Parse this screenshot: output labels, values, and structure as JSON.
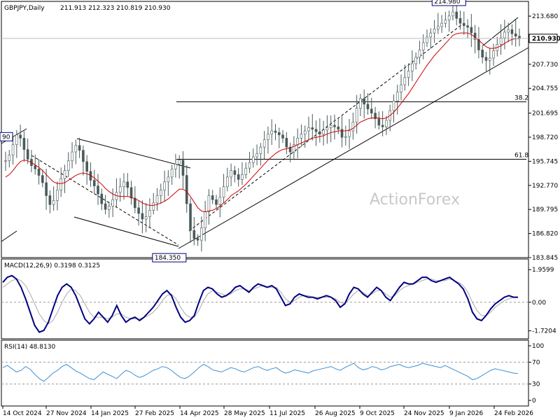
{
  "chart_data": [
    {
      "type": "candlestick",
      "symbol_label": "GBPJPY,Daily",
      "ohlc_label": "211.913 212.323 210.819 210.930",
      "watermark": "ActionForex",
      "current_price": "210.930",
      "ylim": [
        183.845,
        215.5
      ],
      "yticks": [
        "213.680",
        "210.930",
        "207.730",
        "204.755",
        "201.695",
        "198.720",
        "195.745",
        "192.770",
        "189.795",
        "186.820",
        "183.845"
      ],
      "ytick_values": [
        213.68,
        210.93,
        207.73,
        204.755,
        201.695,
        198.72,
        195.745,
        192.77,
        189.795,
        186.82,
        183.845
      ],
      "fib_levels": [
        {
          "label": "38.2",
          "value": 203.1
        },
        {
          "label": "61.8",
          "value": 196.0
        }
      ],
      "price_annotations": [
        {
          "label": "214.980",
          "value": 214.98,
          "date_index": 0.852
        },
        {
          "label": "184.350",
          "value": 184.35,
          "date_index": 0.318
        },
        {
          "label": "90",
          "value": 199.3,
          "date_index": 0.0
        }
      ],
      "close_series": [
        195.8,
        196.5,
        197.8,
        199.0,
        198.6,
        197.2,
        196.0,
        195.2,
        194.8,
        194.0,
        193.1,
        191.5,
        190.4,
        190.9,
        192.2,
        193.6,
        194.6,
        195.8,
        196.9,
        197.7,
        197.1,
        195.7,
        194.5,
        193.4,
        192.7,
        191.7,
        190.5,
        189.8,
        190.2,
        191.0,
        191.9,
        192.6,
        193.2,
        192.5,
        191.2,
        190.0,
        189.3,
        188.6,
        188.9,
        189.7,
        190.6,
        191.5,
        192.2,
        193.2,
        193.8,
        194.8,
        195.4,
        195.9,
        194.0,
        190.5,
        187.2,
        186.2,
        186.0,
        187.5,
        189.5,
        191.5,
        191.0,
        190.4,
        191.3,
        192.6,
        193.8,
        194.6,
        194.1,
        193.5,
        194.1,
        194.9,
        195.6,
        196.3,
        196.7,
        197.5,
        198.4,
        199.1,
        199.5,
        199.3,
        199.0,
        198.6,
        197.5,
        196.9,
        197.8,
        198.6,
        199.1,
        199.5,
        199.9,
        199.7,
        199.4,
        199.1,
        199.6,
        199.9,
        200.2,
        200.0,
        199.7,
        198.7,
        198.8,
        199.5,
        200.6,
        202.3,
        203.5,
        202.8,
        202.2,
        201.7,
        201.0,
        200.2,
        200.0,
        200.8,
        202.0,
        203.2,
        204.3,
        205.2,
        206.1,
        206.9,
        207.8,
        208.6,
        209.5,
        210.4,
        211.1,
        211.6,
        212.1,
        212.4,
        212.8,
        213.2,
        213.7,
        214.2,
        213.4,
        212.8,
        212.5,
        212.3,
        211.6,
        210.8,
        209.5,
        208.6,
        208.2,
        208.5,
        209.4,
        210.2,
        211.0,
        211.7,
        212.0,
        211.5,
        211.2,
        210.9
      ],
      "sma_series": [
        193.8,
        194.1,
        194.6,
        195.2,
        195.7,
        195.9,
        195.8,
        195.6,
        195.3,
        195.0,
        194.6,
        194.1,
        193.6,
        193.2,
        193.0,
        193.0,
        193.1,
        193.4,
        193.7,
        194.0,
        194.2,
        194.3,
        194.2,
        194.0,
        193.7,
        193.3,
        192.9,
        192.4,
        192.0,
        191.7,
        191.5,
        191.4,
        191.4,
        191.4,
        191.3,
        191.1,
        190.9,
        190.6,
        190.4,
        190.3,
        190.3,
        190.4,
        190.6,
        190.8,
        191.1,
        191.5,
        191.9,
        192.3,
        192.3,
        192.0,
        191.4,
        190.7,
        190.0,
        189.6,
        189.5,
        189.6,
        189.7,
        189.9,
        190.2,
        190.6,
        191.0,
        191.5,
        191.8,
        192.1,
        192.5,
        192.9,
        193.4,
        193.9,
        194.4,
        194.9,
        195.4,
        195.9,
        196.3,
        196.7,
        197.0,
        197.2,
        197.3,
        197.4,
        197.6,
        197.8,
        198.0,
        198.2,
        198.4,
        198.6,
        198.7,
        198.8,
        198.9,
        199.1,
        199.3,
        199.4,
        199.5,
        199.5,
        199.5,
        199.6,
        199.8,
        200.2,
        200.6,
        200.8,
        201.0,
        201.1,
        201.1,
        201.1,
        201.0,
        201.1,
        201.4,
        201.8,
        202.3,
        202.9,
        203.5,
        204.1,
        204.8,
        205.5,
        206.2,
        206.9,
        207.6,
        208.2,
        208.8,
        209.3,
        209.8,
        210.3,
        210.8,
        211.3,
        211.5,
        211.6,
        211.6,
        211.6,
        211.4,
        211.1,
        210.7,
        210.3,
        209.9,
        209.7,
        209.7,
        209.8,
        210.0,
        210.3,
        210.6,
        210.8,
        210.9,
        210.9
      ],
      "x_labels": [
        "14 Oct 2024",
        "27 Nov 2024",
        "14 Jan 2025",
        "27 Feb 2025",
        "14 Apr 2025",
        "28 May 2025",
        "11 Jul 2025",
        "26 Aug 2025",
        "9 Oct 2025",
        "24 Nov 2025",
        "9 Jan 2026",
        "24 Feb 2026"
      ]
    },
    {
      "type": "line",
      "label": "MACD(12,26,9) 0.3198 0.3125",
      "yticks": [
        "1.9599",
        "0.00",
        "-1.7204"
      ],
      "ytick_values": [
        1.9599,
        0.0,
        -1.7204
      ],
      "ylim": [
        -2.2,
        2.6
      ],
      "series": [
        {
          "name": "MACD",
          "values": [
            1.2,
            1.5,
            1.6,
            1.4,
            0.9,
            0.2,
            -0.6,
            -1.4,
            -1.8,
            -1.7,
            -1.2,
            -0.4,
            0.4,
            0.9,
            1.1,
            0.9,
            0.4,
            -0.3,
            -1.0,
            -1.3,
            -1.0,
            -0.6,
            -0.9,
            -1.2,
            -0.8,
            -0.2,
            -0.8,
            -1.2,
            -1.0,
            -0.9,
            -1.1,
            -0.9,
            -0.6,
            -0.3,
            0.1,
            0.5,
            0.7,
            0.4,
            -0.3,
            -0.9,
            -1.2,
            -1.1,
            -0.8,
            0.0,
            0.7,
            0.9,
            0.8,
            0.5,
            0.3,
            0.4,
            0.6,
            0.9,
            1.0,
            0.8,
            0.6,
            0.9,
            1.1,
            1.0,
            0.9,
            1.0,
            0.8,
            0.3,
            -0.2,
            -0.1,
            0.3,
            0.5,
            0.4,
            0.3,
            0.3,
            0.2,
            0.3,
            0.4,
            0.3,
            0.1,
            -0.3,
            -0.1,
            0.5,
            0.9,
            0.8,
            0.5,
            0.3,
            0.6,
            0.9,
            0.7,
            0.3,
            0.1,
            0.5,
            0.9,
            1.2,
            1.1,
            1.1,
            1.3,
            1.5,
            1.5,
            1.3,
            1.2,
            1.3,
            1.4,
            1.5,
            1.3,
            1.1,
            0.8,
            0.2,
            -0.6,
            -1.0,
            -1.1,
            -0.8,
            -0.4,
            -0.1,
            0.1,
            0.3,
            0.4,
            0.3,
            0.3
          ]
        },
        {
          "name": "Signal",
          "values": [
            0.9,
            1.1,
            1.3,
            1.4,
            1.3,
            1.0,
            0.5,
            -0.1,
            -0.7,
            -1.1,
            -1.3,
            -1.1,
            -0.6,
            0.0,
            0.5,
            0.8,
            0.7,
            0.4,
            -0.1,
            -0.6,
            -0.9,
            -0.9,
            -0.9,
            -1.0,
            -0.9,
            -0.7,
            -0.7,
            -0.9,
            -1.0,
            -1.0,
            -1.0,
            -0.9,
            -0.8,
            -0.6,
            -0.3,
            0.1,
            0.4,
            0.5,
            0.2,
            -0.3,
            -0.7,
            -0.9,
            -0.9,
            -0.5,
            0.1,
            0.5,
            0.7,
            0.6,
            0.5,
            0.4,
            0.5,
            0.7,
            0.8,
            0.8,
            0.7,
            0.8,
            0.9,
            1.0,
            0.9,
            0.9,
            0.9,
            0.6,
            0.2,
            0.0,
            0.1,
            0.3,
            0.4,
            0.4,
            0.3,
            0.3,
            0.3,
            0.3,
            0.3,
            0.2,
            0.0,
            -0.1,
            0.2,
            0.5,
            0.7,
            0.6,
            0.4,
            0.5,
            0.7,
            0.7,
            0.5,
            0.3,
            0.4,
            0.7,
            0.9,
            1.0,
            1.1,
            1.2,
            1.3,
            1.4,
            1.4,
            1.3,
            1.3,
            1.3,
            1.4,
            1.3,
            1.2,
            1.0,
            0.6,
            0.0,
            -0.5,
            -0.8,
            -0.8,
            -0.6,
            -0.3,
            -0.1,
            0.1,
            0.2,
            0.3,
            0.3
          ]
        }
      ]
    },
    {
      "type": "line",
      "label": "RSI(14) 48.8130",
      "yticks": [
        "100",
        "70",
        "30",
        "0"
      ],
      "ytick_values": [
        100,
        70,
        30,
        0
      ],
      "ylim": [
        0,
        100
      ],
      "series": [
        {
          "name": "RSI",
          "values": [
            60,
            64,
            58,
            52,
            55,
            62,
            57,
            48,
            40,
            35,
            42,
            50,
            55,
            62,
            66,
            60,
            54,
            50,
            45,
            40,
            38,
            45,
            52,
            48,
            44,
            40,
            48,
            55,
            52,
            46,
            42,
            45,
            50,
            55,
            58,
            62,
            60,
            55,
            48,
            42,
            40,
            45,
            52,
            60,
            66,
            62,
            56,
            54,
            52,
            56,
            60,
            58,
            54,
            52,
            56,
            60,
            62,
            58,
            55,
            58,
            60,
            54,
            50,
            52,
            56,
            54,
            52,
            50,
            54,
            56,
            58,
            60,
            62,
            58,
            55,
            60,
            64,
            68,
            60,
            56,
            58,
            62,
            60,
            56,
            58,
            62,
            64,
            66,
            62,
            60,
            62,
            64,
            68,
            66,
            64,
            62,
            60,
            64,
            60,
            56,
            52,
            48,
            44,
            38,
            40,
            45,
            50,
            55,
            58,
            56,
            54,
            52,
            50,
            49
          ]
        }
      ]
    }
  ]
}
